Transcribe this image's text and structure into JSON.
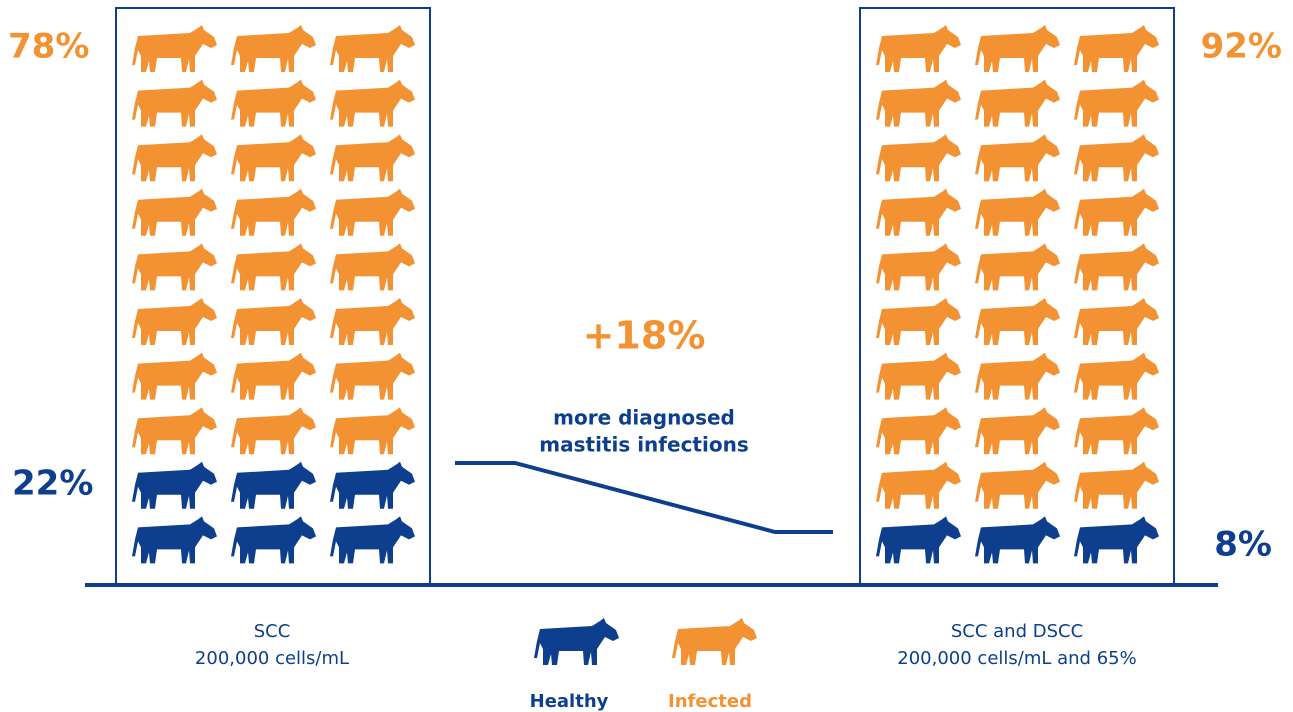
{
  "panels": [
    {
      "infected_pct": "78%",
      "healthy_pct": "22%",
      "label_line1": "SCC",
      "label_line2": "200,000 cells/mL"
    },
    {
      "infected_pct": "92%",
      "healthy_pct": "8%",
      "label_line1": "SCC and DSCC",
      "label_line2": "200,000 cells/mL and 65%"
    }
  ],
  "difference": {
    "value": "+18%",
    "text_line1": "more diagnosed",
    "text_line2": "mastitis infections"
  },
  "legend": {
    "healthy": "Healthy",
    "infected": "Infected"
  }
}
